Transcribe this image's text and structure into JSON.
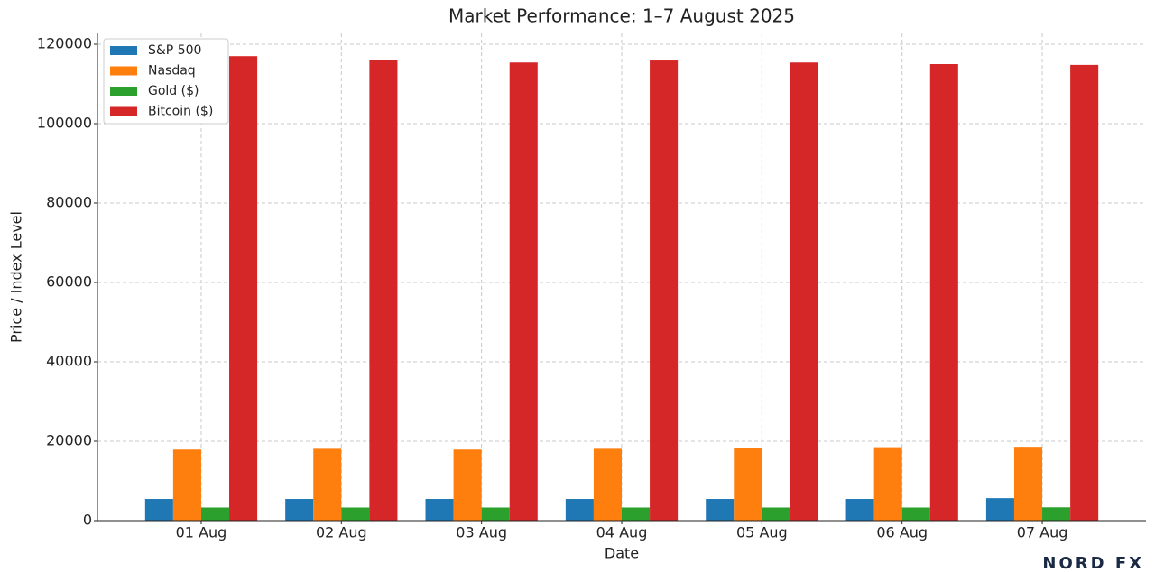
{
  "chart_data": {
    "type": "bar",
    "title": "Market Performance: 1–7 August 2025",
    "x_label": "Date",
    "y_label": "Price / Index Level",
    "categories": [
      "01 Aug",
      "02 Aug",
      "03 Aug",
      "04 Aug",
      "05 Aug",
      "06 Aug",
      "07 Aug"
    ],
    "series": [
      {
        "name": "S&P 500",
        "color": "#1f77b4",
        "values": [
          5450,
          5450,
          5450,
          5450,
          5450,
          5450,
          5650
        ]
      },
      {
        "name": "Nasdaq",
        "color": "#ff7f0e",
        "values": [
          17900,
          18100,
          17900,
          18100,
          18300,
          18500,
          18600
        ]
      },
      {
        "name": "Gold ($)",
        "color": "#2ca02c",
        "values": [
          3300,
          3300,
          3300,
          3300,
          3300,
          3300,
          3350
        ]
      },
      {
        "name": "Bitcoin ($)",
        "color": "#d62728",
        "values": [
          117000,
          116100,
          115400,
          115900,
          115400,
          115000,
          114800
        ]
      }
    ],
    "ylim": [
      0,
      120000
    ],
    "yticks": [
      0,
      20000,
      40000,
      60000,
      80000,
      100000,
      120000
    ],
    "grid": true,
    "legend": "upper-left",
    "watermark": "NORD FX"
  }
}
